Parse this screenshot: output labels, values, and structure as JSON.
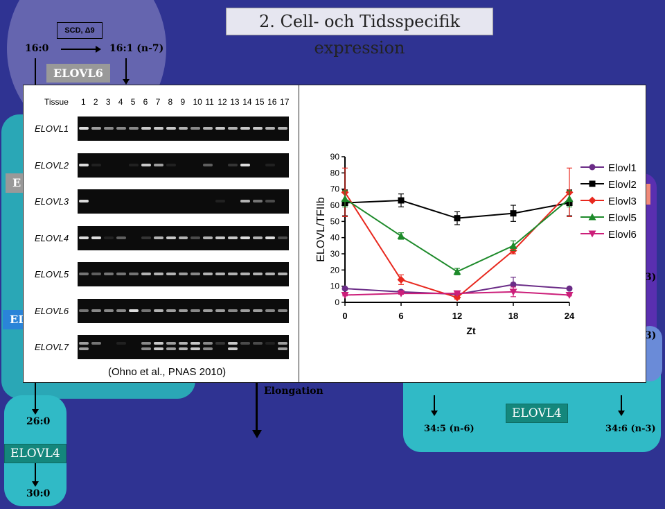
{
  "slide": {
    "title": "2. Cell- och Tidsspecifik expression"
  },
  "pathway": {
    "scd_box": "SCD, Δ9",
    "fa_16_0": "16:0",
    "fa_16_1": "16:1 (n-7)",
    "elovl6_label": "ELOVL6",
    "fa_26_0": "26:0",
    "elovl4_left_label": "ELOVL4",
    "fa_30_0": "30:0",
    "elongation_label": "Elongation",
    "elovl4_right_label": "ELOVL4",
    "fa_34_5": "34:5 (n-6)",
    "fa_34_6": "34:6 (n-3)",
    "partial_left_1": "E",
    "partial_left_2": "EL",
    "partial_right_1": "3)",
    "partial_right_2": "3)"
  },
  "gel": {
    "tissue_header": "Tissue",
    "lanes": [
      "1",
      "2",
      "3",
      "4",
      "5",
      "6",
      "7",
      "8",
      "9",
      "10",
      "11",
      "12",
      "13",
      "14",
      "15",
      "16",
      "17"
    ],
    "genes": [
      "ELOVL1",
      "ELOVL2",
      "ELOVL3",
      "ELOVL4",
      "ELOVL5",
      "ELOVL6",
      "ELOVL7"
    ],
    "citation": "(Ohno et al., PNAS 2010)"
  },
  "chart_data": {
    "type": "line",
    "title": "",
    "xlabel": "Zt",
    "ylabel": "ELOVL/TFIIb",
    "x": [
      0,
      6,
      12,
      18,
      24
    ],
    "xticks": [
      "0",
      "6",
      "12",
      "18",
      "24"
    ],
    "yticks": [
      "0",
      "10",
      "20",
      "30",
      "40",
      "50",
      "60",
      "70",
      "80",
      "90"
    ],
    "ylim": [
      0,
      90
    ],
    "legend_position": "right",
    "series": [
      {
        "name": "Elovl1",
        "color": "#6b2c87",
        "marker": "circle",
        "values": [
          8.5,
          6.5,
          5.0,
          11.0,
          8.5
        ],
        "err": [
          0.5,
          0.5,
          0.5,
          4.5,
          0.5
        ]
      },
      {
        "name": "Elovl2",
        "color": "#000000",
        "marker": "square",
        "values": [
          61.5,
          63.0,
          52.0,
          55.0,
          61.5
        ],
        "err": [
          8,
          4,
          4,
          5,
          8
        ]
      },
      {
        "name": "Elovl3",
        "color": "#e8281e",
        "marker": "diamond",
        "values": [
          68.0,
          14.0,
          3.0,
          32.0,
          68.0
        ],
        "err": [
          15,
          3,
          1,
          2,
          15
        ]
      },
      {
        "name": "Elovl5",
        "color": "#1d8a2a",
        "marker": "triangle",
        "values": [
          64.0,
          41.0,
          19.0,
          35.0,
          64.0
        ],
        "err": [
          5,
          2,
          2,
          3,
          5
        ]
      },
      {
        "name": "Elovl6",
        "color": "#cc1f7a",
        "marker": "triangle-down",
        "values": [
          4.5,
          5.5,
          5.5,
          6.5,
          4.5
        ],
        "err": [
          0.5,
          0.5,
          0.5,
          3,
          0.5
        ]
      }
    ]
  }
}
